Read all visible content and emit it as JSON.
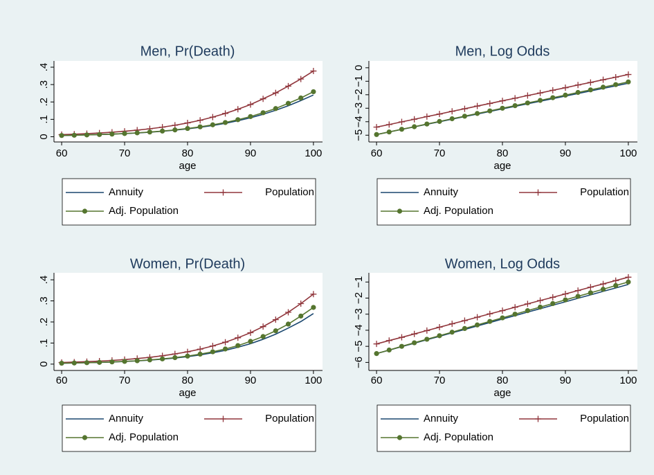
{
  "chart_data": [
    {
      "type": "line",
      "title": "Men, Pr(Death)",
      "x_label": "age",
      "legend_position": "bottom",
      "x": [
        60,
        62,
        64,
        66,
        68,
        70,
        72,
        74,
        76,
        78,
        80,
        82,
        84,
        86,
        88,
        90,
        92,
        94,
        96,
        98,
        100
      ],
      "xlim": [
        59,
        101
      ],
      "xticks": [
        60,
        70,
        80,
        90,
        100
      ],
      "ylim": [
        -0.03,
        0.42
      ],
      "yticks": [
        0,
        {
          "value": 0.1,
          "label": ".1"
        },
        {
          "value": 0.2,
          "label": ".2"
        },
        {
          "value": 0.3,
          "label": ".3"
        },
        {
          "value": 0.4,
          "label": ".4"
        }
      ],
      "series": [
        {
          "name": "Annuity",
          "color": "#1a476f",
          "marker": "none",
          "values": [
            0.007,
            0.0085,
            0.0103,
            0.0124,
            0.0149,
            0.018,
            0.0216,
            0.026,
            0.0314,
            0.0377,
            0.0452,
            0.0541,
            0.0648,
            0.0773,
            0.092,
            0.109,
            0.129,
            0.152,
            0.178,
            0.208,
            0.24
          ]
        },
        {
          "name": "Population",
          "color": "#90353b",
          "marker": "plus",
          "values": [
            0.0121,
            0.0146,
            0.0178,
            0.0215,
            0.026,
            0.0314,
            0.038,
            0.0457,
            0.0552,
            0.066,
            0.0794,
            0.0945,
            0.113,
            0.134,
            0.158,
            0.185,
            0.218,
            0.252,
            0.291,
            0.332,
            0.378
          ]
        },
        {
          "name": "Adj. Population",
          "color": "#55752f",
          "marker": "circle",
          "values": [
            0.007,
            0.0085,
            0.0104,
            0.0125,
            0.0152,
            0.0183,
            0.0223,
            0.0269,
            0.0326,
            0.0392,
            0.0474,
            0.0568,
            0.0685,
            0.0817,
            0.098,
            0.116,
            0.138,
            0.162,
            0.192,
            0.223,
            0.259
          ]
        }
      ]
    },
    {
      "type": "line",
      "title": "Men, Log Odds",
      "x_label": "age",
      "legend_position": "bottom",
      "x": [
        60,
        62,
        64,
        66,
        68,
        70,
        72,
        74,
        76,
        78,
        80,
        82,
        84,
        86,
        88,
        90,
        92,
        94,
        96,
        98,
        100
      ],
      "xlim": [
        59,
        101
      ],
      "xticks": [
        60,
        70,
        80,
        90,
        100
      ],
      "ylim": [
        -5.5,
        0.3
      ],
      "yticks": [
        {
          "value": -5,
          "label": "−5"
        },
        {
          "value": -4,
          "label": "−4"
        },
        {
          "value": -3,
          "label": "−3"
        },
        {
          "value": -2,
          "label": "−2"
        },
        {
          "value": -1,
          "label": "−1"
        },
        0
      ],
      "series": [
        {
          "name": "Annuity",
          "color": "#1a476f",
          "marker": "none",
          "values": [
            -4.95,
            -4.76,
            -4.57,
            -4.38,
            -4.19,
            -4.0,
            -3.81,
            -3.62,
            -3.43,
            -3.24,
            -3.05,
            -2.86,
            -2.67,
            -2.48,
            -2.29,
            -2.1,
            -1.91,
            -1.72,
            -1.53,
            -1.34,
            -1.15
          ]
        },
        {
          "name": "Population",
          "color": "#90353b",
          "marker": "plus",
          "values": [
            -4.4,
            -4.21,
            -4.01,
            -3.82,
            -3.62,
            -3.43,
            -3.23,
            -3.04,
            -2.84,
            -2.65,
            -2.45,
            -2.26,
            -2.06,
            -1.87,
            -1.67,
            -1.48,
            -1.28,
            -1.09,
            -0.89,
            -0.7,
            -0.5
          ]
        },
        {
          "name": "Adj. Population",
          "color": "#55752f",
          "marker": "circle",
          "values": [
            -4.95,
            -4.76,
            -4.56,
            -4.37,
            -4.17,
            -3.98,
            -3.78,
            -3.59,
            -3.39,
            -3.2,
            -3.0,
            -2.81,
            -2.61,
            -2.42,
            -2.22,
            -2.03,
            -1.83,
            -1.64,
            -1.44,
            -1.25,
            -1.05
          ]
        }
      ]
    },
    {
      "type": "line",
      "title": "Women, Pr(Death)",
      "x_label": "age",
      "legend_position": "bottom",
      "x": [
        60,
        62,
        64,
        66,
        68,
        70,
        72,
        74,
        76,
        78,
        80,
        82,
        84,
        86,
        88,
        90,
        92,
        94,
        96,
        98,
        100
      ],
      "xlim": [
        59,
        101
      ],
      "xticks": [
        60,
        70,
        80,
        90,
        100
      ],
      "ylim": [
        -0.03,
        0.42
      ],
      "yticks": [
        0,
        {
          "value": 0.1,
          "label": ".1"
        },
        {
          "value": 0.2,
          "label": ".2"
        },
        {
          "value": 0.3,
          "label": ".3"
        },
        {
          "value": 0.4,
          "label": ".4"
        }
      ],
      "series": [
        {
          "name": "Annuity",
          "color": "#1a476f",
          "marker": "none",
          "values": [
            0.0043,
            0.0053,
            0.0066,
            0.0081,
            0.0101,
            0.0124,
            0.0154,
            0.0189,
            0.0234,
            0.0287,
            0.0356,
            0.0435,
            0.0537,
            0.0654,
            0.0802,
            0.097,
            0.118,
            0.142,
            0.171,
            0.202,
            0.24
          ]
        },
        {
          "name": "Population",
          "color": "#90353b",
          "marker": "plus",
          "values": [
            0.0078,
            0.0096,
            0.0117,
            0.0143,
            0.0176,
            0.0216,
            0.0266,
            0.0323,
            0.0395,
            0.0483,
            0.0584,
            0.0711,
            0.0863,
            0.104,
            0.125,
            0.149,
            0.178,
            0.211,
            0.246,
            0.287,
            0.332
          ]
        },
        {
          "name": "Adj. Population",
          "color": "#55752f",
          "marker": "circle",
          "values": [
            0.0043,
            0.0053,
            0.0067,
            0.0083,
            0.0104,
            0.0129,
            0.016,
            0.02,
            0.0248,
            0.0308,
            0.038,
            0.0474,
            0.0584,
            0.0718,
            0.0879,
            0.108,
            0.131,
            0.158,
            0.19,
            0.228,
            0.269
          ]
        }
      ]
    },
    {
      "type": "line",
      "title": "Women, Log Odds",
      "x_label": "age",
      "legend_position": "bottom",
      "x": [
        60,
        62,
        64,
        66,
        68,
        70,
        72,
        74,
        76,
        78,
        80,
        82,
        84,
        86,
        88,
        90,
        92,
        94,
        96,
        98,
        100
      ],
      "xlim": [
        59,
        101
      ],
      "xticks": [
        60,
        70,
        80,
        90,
        100
      ],
      "ylim": [
        -6.5,
        -0.6
      ],
      "yticks": [
        {
          "value": -6,
          "label": "−6"
        },
        {
          "value": -5,
          "label": "−5"
        },
        {
          "value": -4,
          "label": "−4"
        },
        {
          "value": -3,
          "label": "−3"
        },
        {
          "value": -2,
          "label": "−2"
        },
        {
          "value": -1,
          "label": "−1"
        }
      ],
      "series": [
        {
          "name": "Annuity",
          "color": "#1a476f",
          "marker": "none",
          "values": [
            -5.45,
            -5.24,
            -5.02,
            -4.81,
            -4.59,
            -4.38,
            -4.16,
            -3.95,
            -3.73,
            -3.52,
            -3.3,
            -3.09,
            -2.87,
            -2.66,
            -2.44,
            -2.23,
            -2.01,
            -1.8,
            -1.58,
            -1.37,
            -1.15
          ]
        },
        {
          "name": "Population",
          "color": "#90353b",
          "marker": "plus",
          "values": [
            -4.85,
            -4.64,
            -4.44,
            -4.23,
            -4.02,
            -3.81,
            -3.6,
            -3.4,
            -3.19,
            -2.98,
            -2.78,
            -2.57,
            -2.36,
            -2.15,
            -1.95,
            -1.74,
            -1.53,
            -1.32,
            -1.12,
            -0.91,
            -0.7
          ]
        },
        {
          "name": "Adj. Population",
          "color": "#55752f",
          "marker": "circle",
          "values": [
            -5.45,
            -5.23,
            -5.0,
            -4.78,
            -4.56,
            -4.34,
            -4.12,
            -3.89,
            -3.67,
            -3.45,
            -3.23,
            -3.0,
            -2.78,
            -2.56,
            -2.34,
            -2.11,
            -1.89,
            -1.67,
            -1.45,
            -1.22,
            -1.0
          ]
        }
      ]
    }
  ]
}
